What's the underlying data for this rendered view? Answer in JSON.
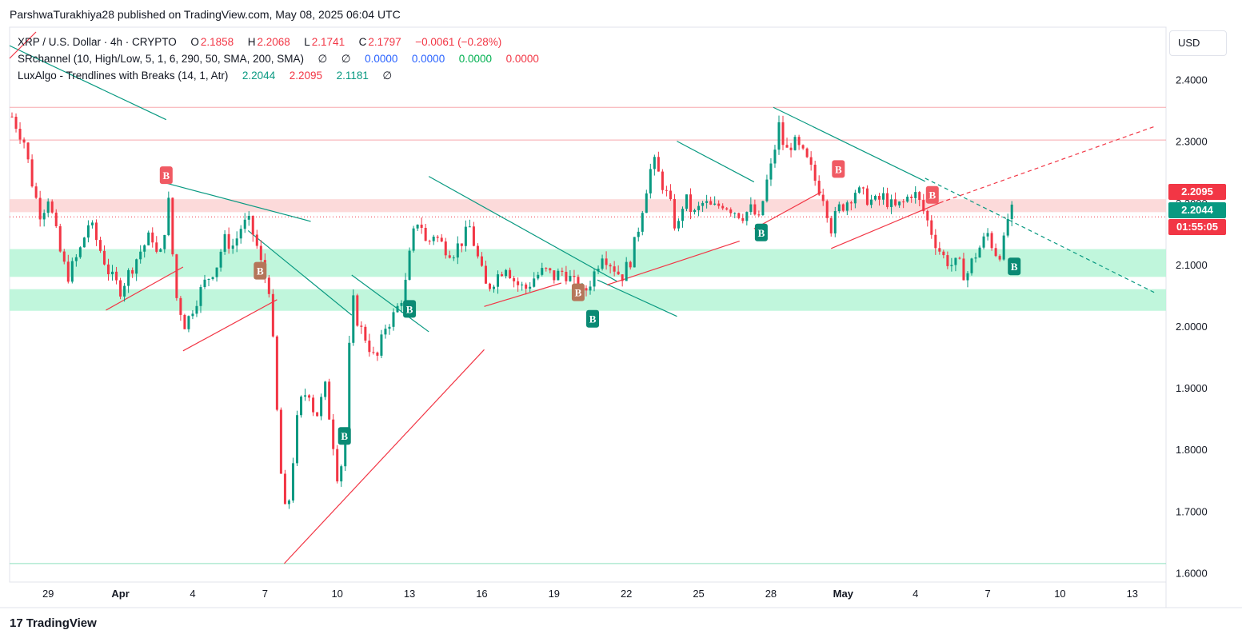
{
  "header": {
    "published": "ParshwaTurakhiya28 published on TradingView.com, May 08, 2025 06:04 UTC"
  },
  "legend": {
    "symbol": "XRP / U.S. Dollar · 4h · CRYPTO",
    "o_label": "O",
    "o_value": "2.1858",
    "h_label": "H",
    "h_value": "2.2068",
    "l_label": "L",
    "l_value": "2.1741",
    "c_label": "C",
    "c_value": "2.1797",
    "change": "−0.0061 (−0.28%)",
    "sr_name": "SRchannel (10, High/Low, 5, 1, 6, 290, 50, SMA, 200, SMA)",
    "sr_sym1": "∅",
    "sr_sym2": "∅",
    "sr_v1": "0.0000",
    "sr_v2": "0.0000",
    "sr_v3": "0.0000",
    "sr_v4": "0.0000",
    "lux_name": "LuxAlgo - Trendlines with Breaks (14, 1, Atr)",
    "lux_v1": "2.2044",
    "lux_v2": "2.2095",
    "lux_v3": "2.1181",
    "lux_sym": "∅"
  },
  "currency_label": "USD",
  "price_tags": {
    "resistance": "2.2095",
    "current": "2.2044",
    "countdown": "01:55:05"
  },
  "footer": {
    "logo": "17",
    "brand": "TradingView"
  },
  "colors": {
    "up": "#089981",
    "down": "#f23645",
    "teal_line": "#089981",
    "red_line": "#f23645",
    "resistance_zone": "#fbd3d3",
    "support_zone": "#b9f5d8",
    "blue": "#2962ff",
    "green_value": "#00b050"
  },
  "chart_data": {
    "type": "candlestick",
    "interval": "4h",
    "y_ticks": [
      "2.4000",
      "2.3000",
      "2.2000",
      "2.1000",
      "2.0000",
      "1.9000",
      "1.8000",
      "1.7000",
      "1.6000"
    ],
    "ylim": [
      1.585,
      2.485
    ],
    "x_ticks": [
      {
        "label": "29",
        "day": 0
      },
      {
        "label": "Apr",
        "day": 3
      },
      {
        "label": "4",
        "day": 6
      },
      {
        "label": "7",
        "day": 9
      },
      {
        "label": "10",
        "day": 12
      },
      {
        "label": "13",
        "day": 15
      },
      {
        "label": "16",
        "day": 18
      },
      {
        "label": "19",
        "day": 21
      },
      {
        "label": "22",
        "day": 24
      },
      {
        "label": "25",
        "day": 27
      },
      {
        "label": "28",
        "day": 30
      },
      {
        "label": "May",
        "day": 33
      },
      {
        "label": "4",
        "day": 36
      },
      {
        "label": "7",
        "day": 39
      },
      {
        "label": "10",
        "day": 42
      },
      {
        "label": "13",
        "day": 45
      }
    ],
    "xlim_days": [
      -1.6,
      46.4
    ],
    "resistance_lines": [
      2.355,
      2.302
    ],
    "resistance_zone": [
      2.206,
      2.185
    ],
    "support_zones": [
      [
        2.125,
        2.08
      ],
      [
        2.06,
        2.025
      ]
    ],
    "support_line": 1.615,
    "close_path": [
      [
        -1.5,
        2.34
      ],
      [
        -1.0,
        2.3
      ],
      [
        -0.6,
        2.22
      ],
      [
        -0.3,
        2.18
      ],
      [
        0.0,
        2.21
      ],
      [
        0.5,
        2.12
      ],
      [
        0.8,
        2.08
      ],
      [
        1.3,
        2.12
      ],
      [
        1.7,
        2.17
      ],
      [
        2.2,
        2.12
      ],
      [
        2.6,
        2.08
      ],
      [
        3.0,
        2.06
      ],
      [
        3.4,
        2.09
      ],
      [
        3.8,
        2.12
      ],
      [
        4.3,
        2.15
      ],
      [
        4.6,
        2.1
      ],
      [
        5.0,
        2.2
      ],
      [
        5.3,
        2.05
      ],
      [
        5.7,
        2.0
      ],
      [
        6.1,
        2.04
      ],
      [
        6.5,
        2.07
      ],
      [
        7.0,
        2.1
      ],
      [
        7.3,
        2.14
      ],
      [
        7.7,
        2.13
      ],
      [
        8.0,
        2.16
      ],
      [
        8.3,
        2.17
      ],
      [
        8.6,
        2.14
      ],
      [
        8.9,
        2.09
      ],
      [
        9.2,
        2.06
      ],
      [
        9.5,
        1.86
      ],
      [
        9.7,
        1.74
      ],
      [
        9.9,
        1.68
      ],
      [
        10.1,
        1.76
      ],
      [
        10.4,
        1.87
      ],
      [
        10.8,
        1.9
      ],
      [
        11.1,
        1.85
      ],
      [
        11.5,
        1.9
      ],
      [
        11.8,
        1.82
      ],
      [
        12.0,
        1.76
      ],
      [
        12.3,
        1.79
      ],
      [
        12.6,
        2.05
      ],
      [
        12.9,
        2.0
      ],
      [
        13.2,
        1.98
      ],
      [
        13.6,
        1.94
      ],
      [
        14.0,
        2.0
      ],
      [
        14.4,
        2.02
      ],
      [
        14.8,
        2.06
      ],
      [
        15.1,
        2.14
      ],
      [
        15.4,
        2.18
      ],
      [
        15.7,
        2.13
      ],
      [
        16.0,
        2.15
      ],
      [
        16.4,
        2.13
      ],
      [
        16.8,
        2.12
      ],
      [
        17.2,
        2.14
      ],
      [
        17.5,
        2.16
      ],
      [
        17.9,
        2.1
      ],
      [
        18.2,
        2.06
      ],
      [
        18.6,
        2.08
      ],
      [
        19.0,
        2.1
      ],
      [
        19.4,
        2.07
      ],
      [
        19.8,
        2.06
      ],
      [
        20.2,
        2.08
      ],
      [
        20.6,
        2.09
      ],
      [
        21.0,
        2.08
      ],
      [
        21.4,
        2.09
      ],
      [
        21.8,
        2.07
      ],
      [
        22.2,
        2.05
      ],
      [
        22.6,
        2.08
      ],
      [
        23.0,
        2.12
      ],
      [
        23.4,
        2.1
      ],
      [
        23.8,
        2.08
      ],
      [
        24.2,
        2.11
      ],
      [
        24.5,
        2.16
      ],
      [
        24.8,
        2.22
      ],
      [
        25.1,
        2.27
      ],
      [
        25.4,
        2.24
      ],
      [
        25.8,
        2.2
      ],
      [
        26.1,
        2.15
      ],
      [
        26.4,
        2.21
      ],
      [
        26.8,
        2.18
      ],
      [
        27.2,
        2.2
      ],
      [
        27.6,
        2.19
      ],
      [
        28.0,
        2.2
      ],
      [
        28.4,
        2.19
      ],
      [
        28.8,
        2.18
      ],
      [
        29.2,
        2.19
      ],
      [
        29.5,
        2.17
      ],
      [
        29.8,
        2.23
      ],
      [
        30.1,
        2.27
      ],
      [
        30.3,
        2.33
      ],
      [
        30.6,
        2.28
      ],
      [
        30.9,
        2.3
      ],
      [
        31.3,
        2.28
      ],
      [
        31.6,
        2.26
      ],
      [
        31.9,
        2.23
      ],
      [
        32.2,
        2.21
      ],
      [
        32.5,
        2.16
      ],
      [
        32.8,
        2.19
      ],
      [
        33.1,
        2.2
      ],
      [
        33.5,
        2.22
      ],
      [
        33.9,
        2.21
      ],
      [
        34.3,
        2.2
      ],
      [
        34.7,
        2.21
      ],
      [
        35.1,
        2.19
      ],
      [
        35.5,
        2.2
      ],
      [
        35.9,
        2.22
      ],
      [
        36.3,
        2.19
      ],
      [
        36.6,
        2.16
      ],
      [
        36.9,
        2.13
      ],
      [
        37.2,
        2.11
      ],
      [
        37.5,
        2.1
      ],
      [
        37.8,
        2.1
      ],
      [
        38.1,
        2.08
      ],
      [
        38.4,
        2.11
      ],
      [
        38.7,
        2.13
      ],
      [
        39.0,
        2.15
      ],
      [
        39.3,
        2.12
      ],
      [
        39.6,
        2.12
      ],
      [
        39.9,
        2.19
      ],
      [
        40.1,
        2.18
      ]
    ],
    "b_labels": [
      {
        "day": 4.9,
        "price": 2.245,
        "color": "red"
      },
      {
        "day": 8.8,
        "price": 2.09,
        "color": "brown"
      },
      {
        "day": 12.3,
        "price": 1.822,
        "color": "green"
      },
      {
        "day": 15.0,
        "price": 2.028,
        "color": "green"
      },
      {
        "day": 22.0,
        "price": 2.055,
        "color": "brown"
      },
      {
        "day": 22.6,
        "price": 2.012,
        "color": "green"
      },
      {
        "day": 29.6,
        "price": 2.152,
        "color": "green"
      },
      {
        "day": 32.8,
        "price": 2.255,
        "color": "red"
      },
      {
        "day": 36.7,
        "price": 2.213,
        "color": "red"
      },
      {
        "day": 40.1,
        "price": 2.097,
        "color": "green"
      }
    ],
    "b_text": "B",
    "teal_trendlines": [
      [
        [
          -1.6,
          2.455
        ],
        [
          4.9,
          2.335
        ]
      ],
      [
        [
          4.9,
          2.232
        ],
        [
          10.9,
          2.17
        ]
      ],
      [
        [
          8.3,
          2.155
        ],
        [
          12.6,
          2.018
        ]
      ],
      [
        [
          12.6,
          2.083
        ],
        [
          15.8,
          1.991
        ]
      ],
      [
        [
          15.8,
          2.243
        ],
        [
          23.6,
          2.073
        ]
      ],
      [
        [
          22.8,
          2.075
        ],
        [
          26.1,
          2.016
        ]
      ],
      [
        [
          26.1,
          2.3
        ],
        [
          29.3,
          2.234
        ]
      ],
      [
        [
          30.1,
          2.355
        ],
        [
          36.4,
          2.235
        ]
      ]
    ],
    "teal_dashed": [
      [
        [
          36.4,
          2.24
        ],
        [
          46.0,
          2.053
        ]
      ]
    ],
    "red_trendlines": [
      [
        [
          2.4,
          2.026
        ],
        [
          5.6,
          2.096
        ]
      ],
      [
        [
          5.6,
          1.96
        ],
        [
          9.5,
          2.043
        ]
      ],
      [
        [
          9.8,
          1.615
        ],
        [
          18.1,
          1.962
        ]
      ],
      [
        [
          18.1,
          2.032
        ],
        [
          21.3,
          2.07
        ]
      ],
      [
        [
          23.2,
          2.067
        ],
        [
          28.7,
          2.138
        ]
      ],
      [
        [
          29.3,
          2.158
        ],
        [
          32.1,
          2.218
        ]
      ],
      [
        [
          32.5,
          2.126
        ],
        [
          37.0,
          2.2
        ]
      ]
    ],
    "red_dashed": [
      [
        [
          37.0,
          2.2
        ],
        [
          46.0,
          2.325
        ]
      ]
    ]
  }
}
